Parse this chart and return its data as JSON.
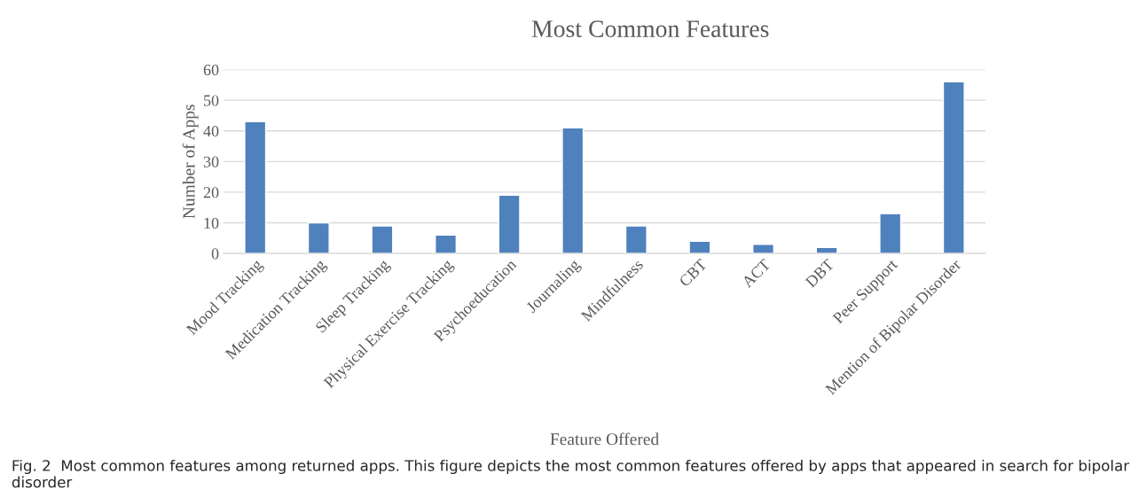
{
  "chart_data": {
    "type": "bar",
    "title": "Most Common Features",
    "xlabel": "Feature Offered",
    "ylabel": "Number of Apps",
    "categories": [
      "Mood Tracking",
      "Medication Tracking",
      "Sleep Tracking",
      "Physical Exercise Tracking",
      "Psychoeducation",
      "Journaling",
      "Mindfulness",
      "CBT",
      "ACT",
      "DBT",
      "Peer Support",
      "Mention of Bipolar Disorder"
    ],
    "values": [
      43,
      10,
      9,
      6,
      19,
      41,
      9,
      4,
      3,
      2,
      13,
      56
    ],
    "color": "#4f81bd",
    "ylim": [
      0,
      60
    ],
    "yticks": [
      0,
      10,
      20,
      30,
      40,
      50,
      60
    ],
    "grid": "y",
    "annotations": [
      "Fig. 2  Most common features among returned apps. This figure depicts the most common features offered by apps that appeared in search for bipolar disorder"
    ]
  }
}
